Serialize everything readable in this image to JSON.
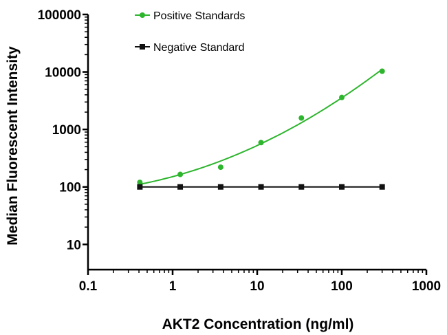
{
  "chart_data": {
    "type": "scatter",
    "title": "",
    "xlabel": "AKT2 Concentration (ng/ml)",
    "ylabel": "Median Fluorescent Intensity",
    "xscale": "log",
    "yscale": "log",
    "xlim": [
      0.1,
      1000
    ],
    "ylim": [
      3,
      100000
    ],
    "xticks": [
      0.1,
      1,
      10,
      100,
      1000
    ],
    "xtick_labels": [
      "0.1",
      "1",
      "10",
      "100",
      "1000"
    ],
    "yticks": [
      10,
      100,
      1000,
      10000,
      100000
    ],
    "ytick_labels": [
      "10",
      "100",
      "1000",
      "10000",
      "100000"
    ],
    "grid": false,
    "legend_position": "top-center",
    "series": [
      {
        "name": "Positive Standards",
        "color": "#2db52d",
        "marker": "circle",
        "fit_curve": true,
        "x": [
          0.41,
          1.23,
          3.7,
          11.1,
          33.3,
          100,
          300
        ],
        "y": [
          120,
          165,
          220,
          590,
          1580,
          3600,
          10300
        ]
      },
      {
        "name": "Negative Standard",
        "color": "#111111",
        "marker": "square",
        "fit_curve": false,
        "x": [
          0.41,
          1.23,
          3.7,
          11.1,
          33.3,
          100,
          300
        ],
        "y": [
          100,
          100,
          100,
          100,
          100,
          100,
          100
        ]
      }
    ]
  }
}
